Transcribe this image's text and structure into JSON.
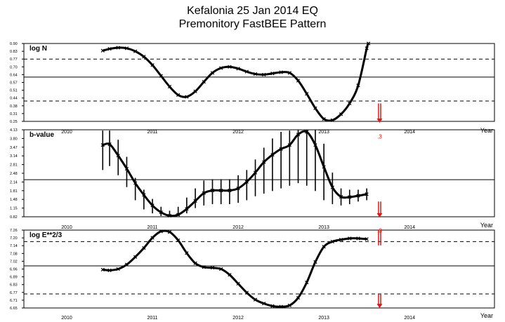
{
  "header": {
    "title": "Kefalonia 25 Jan 2014 EQ",
    "subtitle": "Premonitory FastBEE Pattern"
  },
  "colors": {
    "curve": "#000000",
    "alarm": "#e8150f",
    "grid": "#000000"
  },
  "chart_data": [
    {
      "type": "line",
      "panel": "log N",
      "title": "log N",
      "ylabel": "log N",
      "xlabel": "Year",
      "x_ticks": [
        "2010",
        "2011",
        "2012",
        "2013",
        "2014"
      ],
      "x_range": [
        2009.5,
        2014.99
      ],
      "ylim": [
        0.25,
        0.9
      ],
      "y_ticks": [
        "0.90",
        "0.83",
        "0.77",
        "0.70",
        "0.64",
        "0.57",
        "0.51",
        "0.44",
        "0.38",
        "0.31",
        "0.25"
      ],
      "reference_lines": [
        {
          "y": 0.77,
          "style": "dashed"
        },
        {
          "y": 0.62,
          "style": "solid"
        },
        {
          "y": 0.42,
          "style": "dashed"
        }
      ],
      "series": [
        {
          "x": [
            2010.42,
            2010.5,
            2010.6,
            2010.7,
            2010.8,
            2010.9,
            2011.0,
            2011.1,
            2011.2,
            2011.3,
            2011.4,
            2011.5,
            2011.6,
            2011.7,
            2011.8,
            2011.9,
            2012.0,
            2012.1,
            2012.2,
            2012.3,
            2012.4,
            2012.5,
            2012.6,
            2012.7,
            2012.8,
            2012.9,
            2013.0,
            2013.1,
            2013.2,
            2013.3,
            2013.4,
            2013.5,
            2013.52
          ],
          "values": [
            0.84,
            0.855,
            0.865,
            0.86,
            0.835,
            0.79,
            0.72,
            0.63,
            0.54,
            0.47,
            0.455,
            0.5,
            0.58,
            0.655,
            0.695,
            0.705,
            0.69,
            0.665,
            0.645,
            0.64,
            0.65,
            0.66,
            0.655,
            0.59,
            0.48,
            0.36,
            0.27,
            0.26,
            0.31,
            0.4,
            0.55,
            0.86,
            0.9
          ]
        }
      ],
      "alarm": {
        "x": 2013.65,
        "y_from": 0.4,
        "y_to": 0.25
      }
    },
    {
      "type": "line",
      "panel": "b-value",
      "title": "b-value",
      "ylabel": "b-value",
      "xlabel": "Year",
      "x_ticks": [
        "2010",
        "2011",
        "2012",
        "2013",
        "2014"
      ],
      "x_range": [
        2009.5,
        2014.99
      ],
      "ylim": [
        0.82,
        4.13
      ],
      "y_ticks": [
        "4.13",
        "3.80",
        "3.47",
        "3.14",
        "2.81",
        "2.48",
        "2.14",
        "1.81",
        "1.48",
        "1.15",
        "0.82"
      ],
      "reference_lines": [
        {
          "y": 2.23,
          "style": "solid"
        }
      ],
      "series": [
        {
          "x": [
            2010.42,
            2010.5,
            2010.6,
            2010.7,
            2010.8,
            2010.9,
            2011.0,
            2011.1,
            2011.2,
            2011.3,
            2011.4,
            2011.5,
            2011.6,
            2011.7,
            2011.8,
            2011.9,
            2012.0,
            2012.1,
            2012.2,
            2012.3,
            2012.4,
            2012.5,
            2012.6,
            2012.7,
            2012.8,
            2012.9,
            2013.0,
            2013.1,
            2013.2,
            2013.3,
            2013.4,
            2013.5
          ],
          "values": [
            3.55,
            3.58,
            3.15,
            2.65,
            2.1,
            1.65,
            1.25,
            0.99,
            0.86,
            0.9,
            1.12,
            1.42,
            1.72,
            1.82,
            1.82,
            1.82,
            1.9,
            2.15,
            2.5,
            2.9,
            3.18,
            3.4,
            3.55,
            3.95,
            4.05,
            3.55,
            2.72,
            1.94,
            1.58,
            1.57,
            1.62,
            1.68
          ]
        }
      ],
      "error_bars": [
        {
          "x": 2010.42,
          "low": 2.6,
          "high": 4.1
        },
        {
          "x": 2010.5,
          "low": 2.75,
          "high": 4.1
        },
        {
          "x": 2010.6,
          "low": 2.4,
          "high": 3.75
        },
        {
          "x": 2010.7,
          "low": 1.95,
          "high": 3.1
        },
        {
          "x": 2010.8,
          "low": 1.45,
          "high": 2.3
        },
        {
          "x": 2010.9,
          "low": 1.1,
          "high": 1.85
        },
        {
          "x": 2011.0,
          "low": 0.95,
          "high": 1.5
        },
        {
          "x": 2011.1,
          "low": 0.85,
          "high": 1.2
        },
        {
          "x": 2011.2,
          "low": 0.82,
          "high": 1.05
        },
        {
          "x": 2011.3,
          "low": 0.85,
          "high": 1.2
        },
        {
          "x": 2011.4,
          "low": 0.95,
          "high": 1.55
        },
        {
          "x": 2011.5,
          "low": 1.15,
          "high": 1.9
        },
        {
          "x": 2011.6,
          "low": 1.25,
          "high": 2.2
        },
        {
          "x": 2011.7,
          "low": 1.3,
          "high": 2.25
        },
        {
          "x": 2011.8,
          "low": 1.3,
          "high": 2.25
        },
        {
          "x": 2011.9,
          "low": 1.3,
          "high": 2.25
        },
        {
          "x": 2012.0,
          "low": 1.35,
          "high": 2.4
        },
        {
          "x": 2012.1,
          "low": 1.45,
          "high": 2.6
        },
        {
          "x": 2012.2,
          "low": 1.6,
          "high": 3.0
        },
        {
          "x": 2012.3,
          "low": 1.7,
          "high": 3.45
        },
        {
          "x": 2012.4,
          "low": 1.8,
          "high": 3.8
        },
        {
          "x": 2012.5,
          "low": 1.9,
          "high": 4.05
        },
        {
          "x": 2012.6,
          "low": 2.0,
          "high": 4.1
        },
        {
          "x": 2012.7,
          "low": 2.1,
          "high": 4.13
        },
        {
          "x": 2012.8,
          "low": 2.0,
          "high": 4.13
        },
        {
          "x": 2012.9,
          "low": 1.8,
          "high": 4.13
        },
        {
          "x": 2013.0,
          "low": 1.45,
          "high": 3.6
        },
        {
          "x": 2013.1,
          "low": 1.3,
          "high": 2.5
        },
        {
          "x": 2013.2,
          "low": 1.25,
          "high": 1.9
        },
        {
          "x": 2013.3,
          "low": 1.3,
          "high": 1.85
        },
        {
          "x": 2013.4,
          "low": 1.4,
          "high": 1.85
        },
        {
          "x": 2013.5,
          "low": 1.45,
          "high": 1.9
        }
      ],
      "alarm": {
        "x": 2013.65,
        "y_from": 1.4,
        "y_to": 0.85,
        "label": ".3",
        "label_y": 3.8
      }
    },
    {
      "type": "line",
      "panel": "log E",
      "title": "log E**2/3",
      "ylabel": "log E**2/3",
      "xlabel": "Year",
      "x_ticks": [
        "2010",
        "2011",
        "2012",
        "2013",
        "2014"
      ],
      "x_range": [
        2009.5,
        2014.99
      ],
      "ylim": [
        6.65,
        7.26
      ],
      "y_ticks": [
        "7.26",
        "7.20",
        "7.14",
        "7.08",
        "7.02",
        "6.96",
        "6.89",
        "6.83",
        "6.77",
        "6.71",
        "6.65"
      ],
      "reference_lines": [
        {
          "y": 7.17,
          "style": "dashed"
        },
        {
          "y": 6.98,
          "style": "solid"
        },
        {
          "y": 6.76,
          "style": "dashed"
        }
      ],
      "series": [
        {
          "x": [
            2010.42,
            2010.5,
            2010.6,
            2010.7,
            2010.8,
            2010.9,
            2011.0,
            2011.1,
            2011.2,
            2011.3,
            2011.4,
            2011.5,
            2011.6,
            2011.7,
            2011.8,
            2011.9,
            2012.0,
            2012.1,
            2012.2,
            2012.3,
            2012.4,
            2012.5,
            2012.6,
            2012.7,
            2012.8,
            2012.9,
            2013.0,
            2013.1,
            2013.2,
            2013.3,
            2013.4,
            2013.5
          ],
          "values": [
            6.95,
            6.945,
            6.955,
            6.99,
            7.05,
            7.12,
            7.2,
            7.25,
            7.245,
            7.18,
            7.08,
            7.0,
            6.97,
            6.965,
            6.955,
            6.91,
            6.84,
            6.77,
            6.715,
            6.685,
            6.665,
            6.66,
            6.67,
            6.73,
            6.85,
            7.01,
            7.13,
            7.17,
            7.185,
            7.195,
            7.195,
            7.19
          ]
        }
      ],
      "alarm": {
        "x": 2013.65,
        "y_from": 6.76,
        "y_to": 6.66,
        "label": ".3",
        "label_y": 7.24,
        "top_marker": {
          "y_from": 7.26,
          "y_to": 7.14
        }
      }
    }
  ]
}
